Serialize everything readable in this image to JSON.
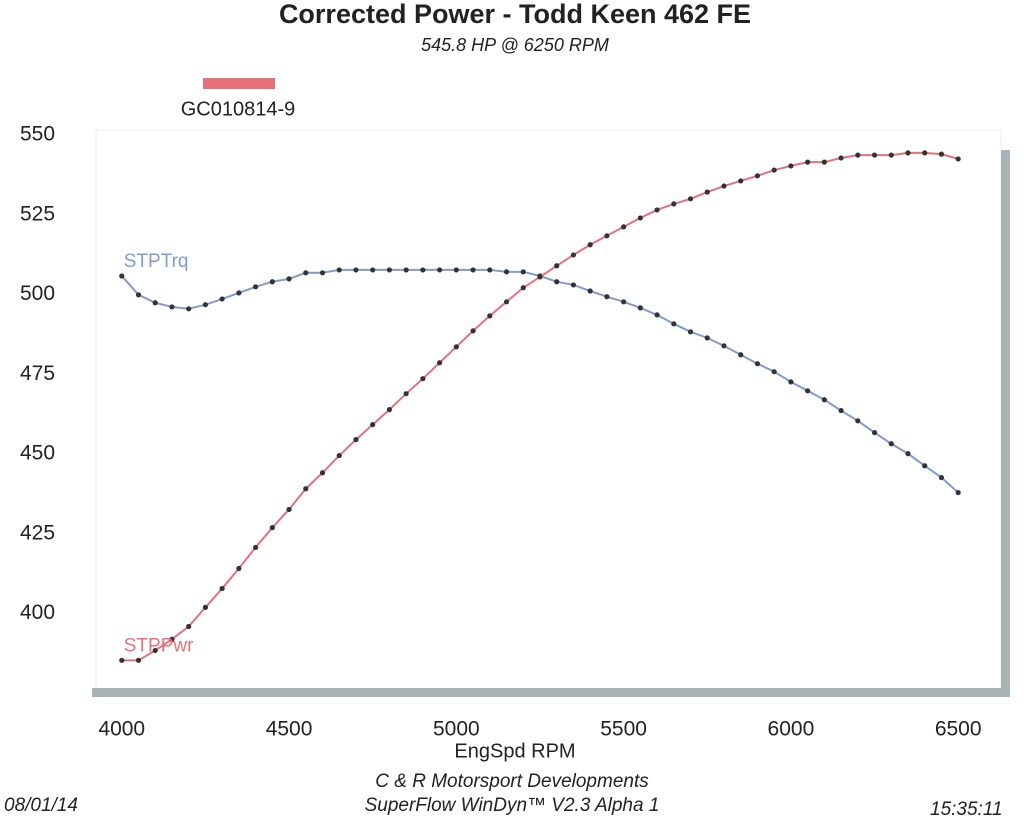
{
  "chart_data": {
    "type": "line",
    "title": "Corrected Power - Todd Keen 462 FE",
    "subtitle": "545.8 HP @ 6250 RPM",
    "legend_label": "GC010814-9",
    "legend_color": "#e8707a",
    "x_label": "EngSpd  RPM",
    "footer": [
      "C & R Motorsport Developments",
      "SuperFlow WinDyn™ V2.3 Alpha 1"
    ],
    "date": "08/01/14",
    "time": "15:35:11",
    "xlim": [
      3920,
      6625
    ],
    "xticks": [
      4000,
      4500,
      5000,
      5500,
      6000,
      6500
    ],
    "ylim": [
      376,
      550
    ],
    "yticks": [
      400,
      425,
      450,
      475,
      500,
      525,
      550
    ],
    "x": [
      4000,
      4050,
      4100,
      4150,
      4200,
      4250,
      4300,
      4350,
      4400,
      4450,
      4500,
      4550,
      4600,
      4650,
      4700,
      4750,
      4800,
      4850,
      4900,
      4950,
      5000,
      5050,
      5100,
      5150,
      5200,
      5250,
      5300,
      5350,
      5400,
      5450,
      5500,
      5550,
      5600,
      5650,
      5700,
      5750,
      5800,
      5850,
      5900,
      5950,
      6000,
      6050,
      6100,
      6150,
      6200,
      6250,
      6300,
      6350,
      6400,
      6450,
      6500
    ],
    "series": [
      {
        "name": "STPTrq",
        "color": "#7f9ccf",
        "values": [
          505.8,
          499.9,
          497.4,
          496.1,
          495.5,
          496.8,
          498.6,
          500.5,
          502.4,
          504,
          504.9,
          506.8,
          506.8,
          507.7,
          507.7,
          507.7,
          507.7,
          507.7,
          507.7,
          507.7,
          507.7,
          507.7,
          507.7,
          507.1,
          507.1,
          505.8,
          504,
          503,
          501.1,
          499.3,
          497.7,
          495.8,
          493.6,
          490.8,
          488.3,
          486.4,
          483.9,
          481.1,
          478.3,
          475.8,
          472.6,
          469.8,
          467,
          463.6,
          460.4,
          456.7,
          453.2,
          450.1,
          446.3,
          442.6,
          437.9
        ]
      },
      {
        "name": "STPPwr",
        "color": "#e8707a",
        "values": [
          385.3,
          385.3,
          388.4,
          391.9,
          395.9,
          401.9,
          407.8,
          414.1,
          420.7,
          426.9,
          432.6,
          439.1,
          444.1,
          449.5,
          454.5,
          459.2,
          463.9,
          468.9,
          473.6,
          478.6,
          483.6,
          488.6,
          493.3,
          497.7,
          502.1,
          505.5,
          509,
          512.4,
          515.6,
          518.4,
          521.2,
          524,
          526.5,
          528.4,
          530,
          532.1,
          534,
          535.6,
          537.2,
          539,
          540.3,
          541.5,
          541.5,
          542.8,
          543.7,
          543.7,
          543.7,
          544.4,
          544.4,
          544,
          542.5
        ]
      }
    ]
  }
}
